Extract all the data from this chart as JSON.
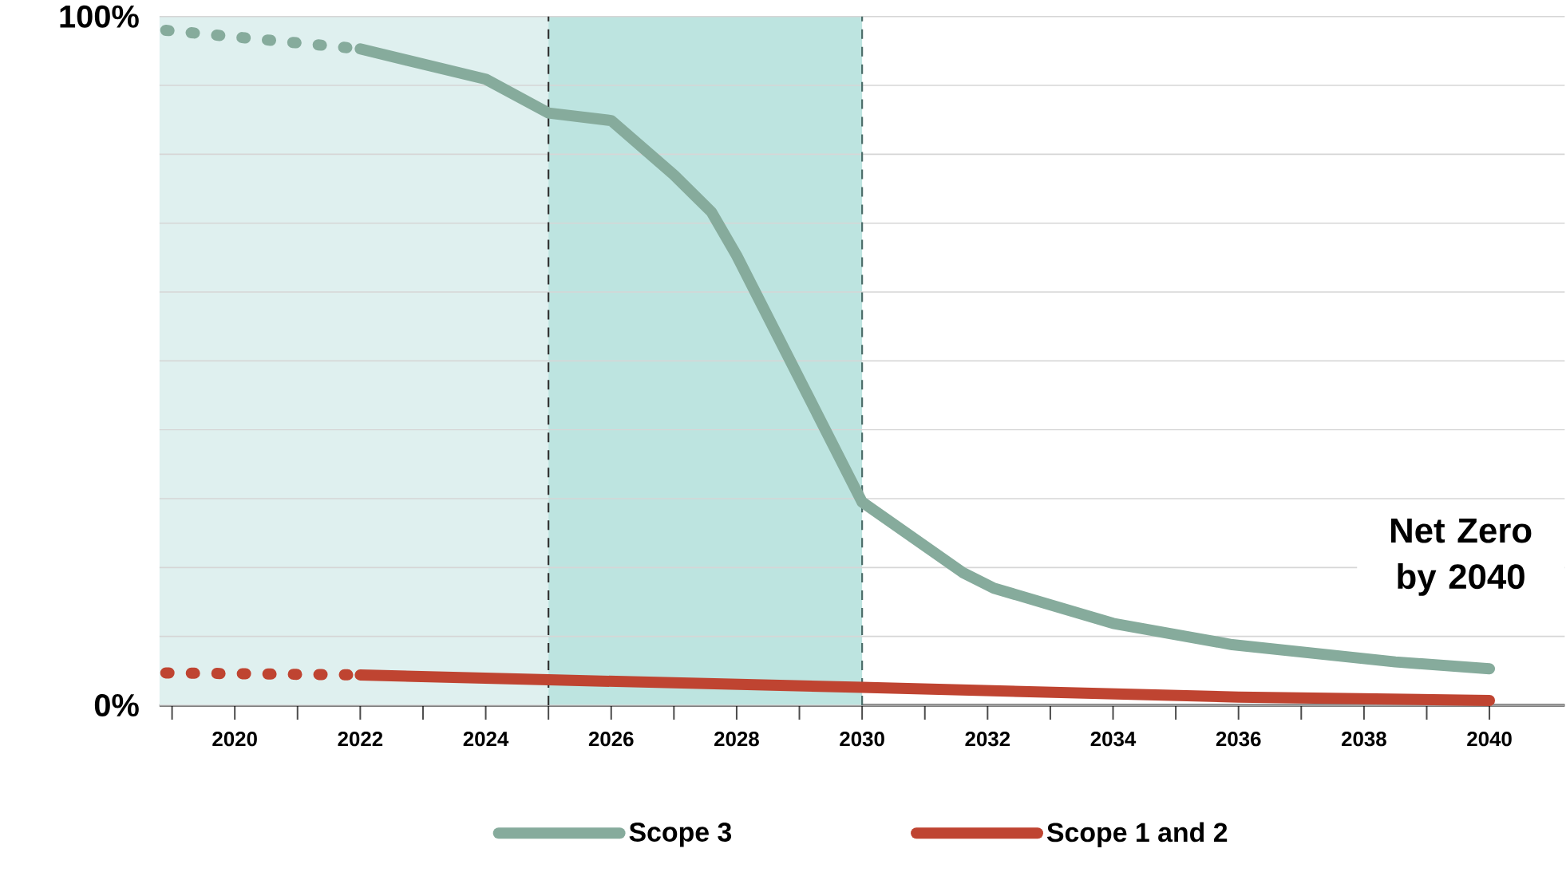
{
  "chart_data": {
    "type": "line",
    "xlim": [
      2018.8,
      2041.2
    ],
    "ylim": [
      0,
      100
    ],
    "xticks": [
      {
        "value": 2019,
        "label": null
      },
      2020,
      {
        "value": 2021,
        "label": null
      },
      2022,
      {
        "value": 2023,
        "label": null
      },
      2024,
      {
        "value": 2025,
        "label": null
      },
      2026,
      {
        "value": 2027,
        "label": null
      },
      2028,
      {
        "value": 2029,
        "label": null
      },
      2030,
      {
        "value": 2031,
        "label": null
      },
      2032,
      {
        "value": 2033,
        "label": null
      },
      2034,
      {
        "value": 2035,
        "label": null
      },
      2036,
      {
        "value": 2037,
        "label": null
      },
      2038,
      {
        "value": 2039,
        "label": null
      },
      2040
    ],
    "yticks": [
      {
        "value": 0,
        "label": "0%"
      },
      {
        "value": 10,
        "label": null
      },
      {
        "value": 20,
        "label": null
      },
      {
        "value": 30,
        "label": null
      },
      {
        "value": 40,
        "label": null
      },
      {
        "value": 50,
        "label": null
      },
      {
        "value": 60,
        "label": null
      },
      {
        "value": 70,
        "label": null
      },
      {
        "value": 80,
        "label": null
      },
      {
        "value": 90,
        "label": null
      },
      {
        "value": 100,
        "label": "100%"
      }
    ],
    "grid": "y",
    "legend": "bottom",
    "marker": "none",
    "bands": [
      {
        "axis": "x",
        "from": 2018.8,
        "to": 2025,
        "color": "#dff0ef"
      },
      {
        "axis": "x",
        "from": 2025,
        "to": 2030,
        "color": "#bde4e0"
      }
    ],
    "ref_lines": [
      {
        "axis": "x",
        "value": 2025,
        "color": "#333333",
        "line_style": "dashed"
      },
      {
        "axis": "x",
        "value": 2030,
        "color": "#4d6e6a",
        "line_style": "dashed"
      }
    ],
    "annotations": [
      "Net Zero by 2040"
    ],
    "series": [
      {
        "color": "#86ab9c",
        "line_style": "dotted",
        "x": [
          2018.9,
          2022
        ],
        "values": [
          98,
          95.3
        ]
      },
      {
        "name": "Scope 3",
        "color": "#86ab9c",
        "line_style": "solid",
        "x": [
          2022,
          2024,
          2025,
          2026,
          2027,
          2027.6,
          2028,
          2030,
          2031.6,
          2032.1,
          2034,
          2035.9,
          2038.5,
          2040
        ],
        "values": [
          95.3,
          90.9,
          86,
          84.9,
          77,
          71.6,
          65.3,
          29.5,
          19.3,
          17,
          11.9,
          8.8,
          6.3,
          5.3
        ]
      },
      {
        "color": "#bf4431",
        "line_style": "dotted",
        "x": [
          2018.9,
          2022
        ],
        "values": [
          4.7,
          4.4
        ]
      },
      {
        "name": "Scope 1 and 2",
        "color": "#bf4431",
        "line_style": "solid",
        "x": [
          2022,
          2025,
          2030,
          2033,
          2036,
          2040
        ],
        "values": [
          4.4,
          3.7,
          2.6,
          1.9,
          1.2,
          0.7
        ]
      }
    ]
  }
}
